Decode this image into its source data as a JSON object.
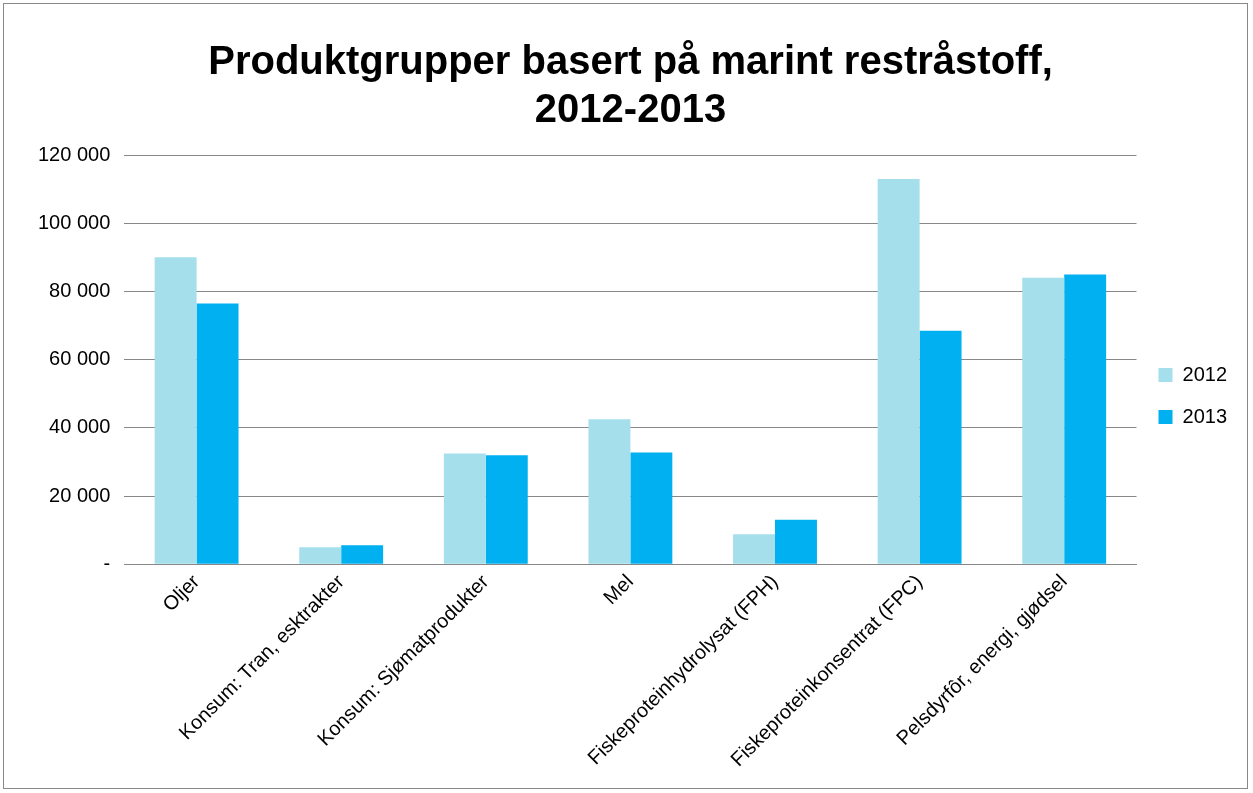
{
  "chart_data": {
    "type": "bar",
    "title": "Produktgrupper basert på marint restråstoff, 2012-2013",
    "categories": [
      "Oljer",
      "Konsum: Tran, esktrakter",
      "Konsum: Sjømatprodukter",
      "Mel",
      "Fiskeproteinhydrolysat (FPH)",
      "Fiskeproteinkonsentrat (FPC)",
      "Pelsdyrfôr, energi, gjødsel"
    ],
    "series": [
      {
        "name": "2012",
        "color": "#a5dfeb",
        "values": [
          90000,
          5000,
          32500,
          42500,
          8800,
          113000,
          84000
        ]
      },
      {
        "name": "2013",
        "color": "#00b0f0",
        "values": [
          76500,
          5600,
          32000,
          32800,
          13100,
          68500,
          85000
        ]
      }
    ],
    "ylim": [
      0,
      120000
    ],
    "yticks": [
      {
        "value": 0,
        "label": "-"
      },
      {
        "value": 20000,
        "label": "20 000"
      },
      {
        "value": 40000,
        "label": "40 000"
      },
      {
        "value": 60000,
        "label": "60 000"
      },
      {
        "value": 80000,
        "label": "80 000"
      },
      {
        "value": 100000,
        "label": "100 000"
      },
      {
        "value": 120000,
        "label": "120 000"
      }
    ],
    "grid": "y",
    "legend": "right"
  }
}
